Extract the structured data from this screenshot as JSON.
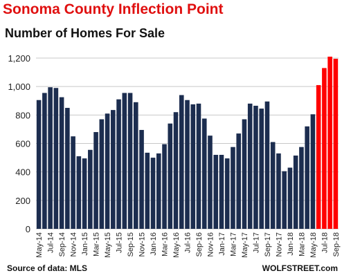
{
  "chart_data": {
    "type": "bar",
    "title": "Sonoma County Inflection Point",
    "subtitle": "Number of Homes For Sale",
    "xlabel": "",
    "ylabel": "",
    "ylim": [
      0,
      1200
    ],
    "yticks": [
      0,
      200,
      400,
      600,
      800,
      1000,
      1200
    ],
    "ytick_labels": [
      "0",
      "200",
      "400",
      "600",
      "800",
      "1,000",
      "1,200"
    ],
    "grid": true,
    "legend": "none",
    "categories": [
      "May-14",
      "Jun-14",
      "Jul-14",
      "Aug-14",
      "Sep-14",
      "Oct-14",
      "Nov-14",
      "Dec-14",
      "Jan-15",
      "Feb-15",
      "Mar-15",
      "Apr-15",
      "May-15",
      "Jun-15",
      "Jul-15",
      "Aug-15",
      "Sep-15",
      "Oct-15",
      "Nov-15",
      "Dec-15",
      "Jan-16",
      "Feb-16",
      "Mar-16",
      "Apr-16",
      "May-16",
      "Jun-16",
      "Jul-16",
      "Aug-16",
      "Sep-16",
      "Oct-16",
      "Nov-16",
      "Dec-16",
      "Jan-17",
      "Feb-17",
      "Mar-17",
      "Apr-17",
      "May-17",
      "Jun-17",
      "Jul-17",
      "Aug-17",
      "Sep-17",
      "Oct-17",
      "Nov-17",
      "Dec-17",
      "Jan-18",
      "Feb-18",
      "Mar-18",
      "Apr-18",
      "May-18",
      "Jun-18",
      "Jul-18",
      "Aug-18",
      "Sep-18"
    ],
    "xtick_labels": [
      "May-14",
      "",
      "Jul-14",
      "",
      "Sep-14",
      "",
      "Nov-14",
      "",
      "Jan-15",
      "",
      "Mar-15",
      "",
      "May-15",
      "",
      "Jul-15",
      "",
      "Sep-15",
      "",
      "Nov-15",
      "",
      "Jan-16",
      "",
      "Mar-16",
      "",
      "May-16",
      "",
      "Jul-16",
      "",
      "Sep-16",
      "",
      "Nov-16",
      "",
      "Jan-17",
      "",
      "Mar-17",
      "",
      "May-17",
      "",
      "Jul-17",
      "",
      "Sep-17",
      "",
      "Nov-17",
      "",
      "Jan-18",
      "",
      "Mar-18",
      "",
      "May-18",
      "",
      "Jul-18",
      "",
      "Sep-18"
    ],
    "values": [
      905,
      955,
      995,
      990,
      925,
      850,
      650,
      510,
      495,
      555,
      680,
      770,
      810,
      835,
      910,
      955,
      955,
      890,
      695,
      535,
      500,
      530,
      595,
      740,
      820,
      940,
      905,
      875,
      880,
      775,
      655,
      520,
      520,
      495,
      575,
      670,
      770,
      880,
      865,
      845,
      895,
      610,
      530,
      405,
      430,
      515,
      575,
      720,
      805,
      1010,
      1130,
      1210,
      1195
    ],
    "colors": {
      "base": "#1c2d4f",
      "highlight": "#ff0000",
      "grid": "#c8c8c8"
    },
    "highlight_from": "Jun-18"
  },
  "footer": {
    "source": "Source of data: MLS",
    "brand": "WOLFSTREET.com"
  }
}
